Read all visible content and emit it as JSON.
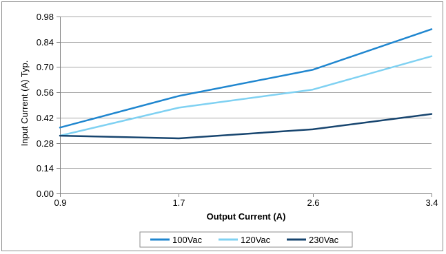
{
  "chart_data": {
    "type": "line",
    "title": "",
    "xlabel": "Output Current (A)",
    "ylabel": "Input Current (A) Typ.",
    "x": [
      0.9,
      1.7,
      2.6,
      3.4
    ],
    "x_tick_labels": [
      "0.9",
      "1.7",
      "2.6",
      "3.4"
    ],
    "y_ticks": [
      0.0,
      0.14,
      0.28,
      0.42,
      0.56,
      0.7,
      0.84,
      0.98
    ],
    "y_tick_labels": [
      "0.00",
      "0.14",
      "0.28",
      "0.42",
      "0.56",
      "0.70",
      "0.84",
      "0.98"
    ],
    "ylim": [
      0.0,
      0.98
    ],
    "grid": true,
    "legend_position": "bottom",
    "series": [
      {
        "name": "100Vac",
        "color": "#1f86cf",
        "values": [
          0.365,
          0.54,
          0.685,
          0.91
        ]
      },
      {
        "name": "120Vac",
        "color": "#7fd1f2",
        "values": [
          0.32,
          0.475,
          0.575,
          0.76
        ]
      },
      {
        "name": "230Vac",
        "color": "#17456f",
        "values": [
          0.32,
          0.305,
          0.355,
          0.44
        ]
      }
    ]
  }
}
